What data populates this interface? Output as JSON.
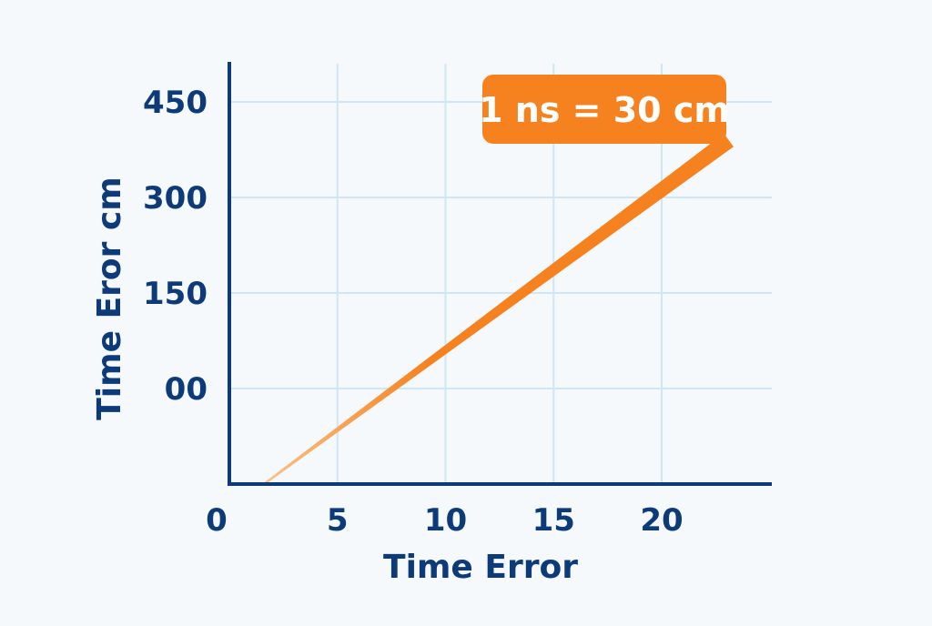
{
  "chart_data": {
    "type": "line",
    "title": "",
    "xlabel": "Time Error",
    "ylabel": "Time Eror cm",
    "x_ticks": [
      {
        "value": 0,
        "label": "0"
      },
      {
        "value": 5,
        "label": "5"
      },
      {
        "value": 10,
        "label": "10"
      },
      {
        "value": 15,
        "label": "15"
      },
      {
        "value": 20,
        "label": "20"
      }
    ],
    "y_ticks": [
      {
        "value": 0,
        "label": "00"
      },
      {
        "value": 150,
        "label": "150"
      },
      {
        "value": 300,
        "label": "300"
      },
      {
        "value": 450,
        "label": "450"
      }
    ],
    "xlim": [
      0,
      25
    ],
    "ylim": [
      -150,
      510
    ],
    "grid": true,
    "series": [
      {
        "color": "#f5821f",
        "x": [
          1.6,
          23.1
        ],
        "y": [
          -150,
          390
        ]
      }
    ],
    "annotations": [
      {
        "text": "1 ns = 30 cm",
        "x": 22.5,
        "y": 435
      }
    ],
    "colors": {
      "axis": "#0d3b7a",
      "grid": "#cfe6f4",
      "accent": "#f5821f",
      "background": "#f5f9fc",
      "annotation_text": "#ffffff"
    }
  }
}
